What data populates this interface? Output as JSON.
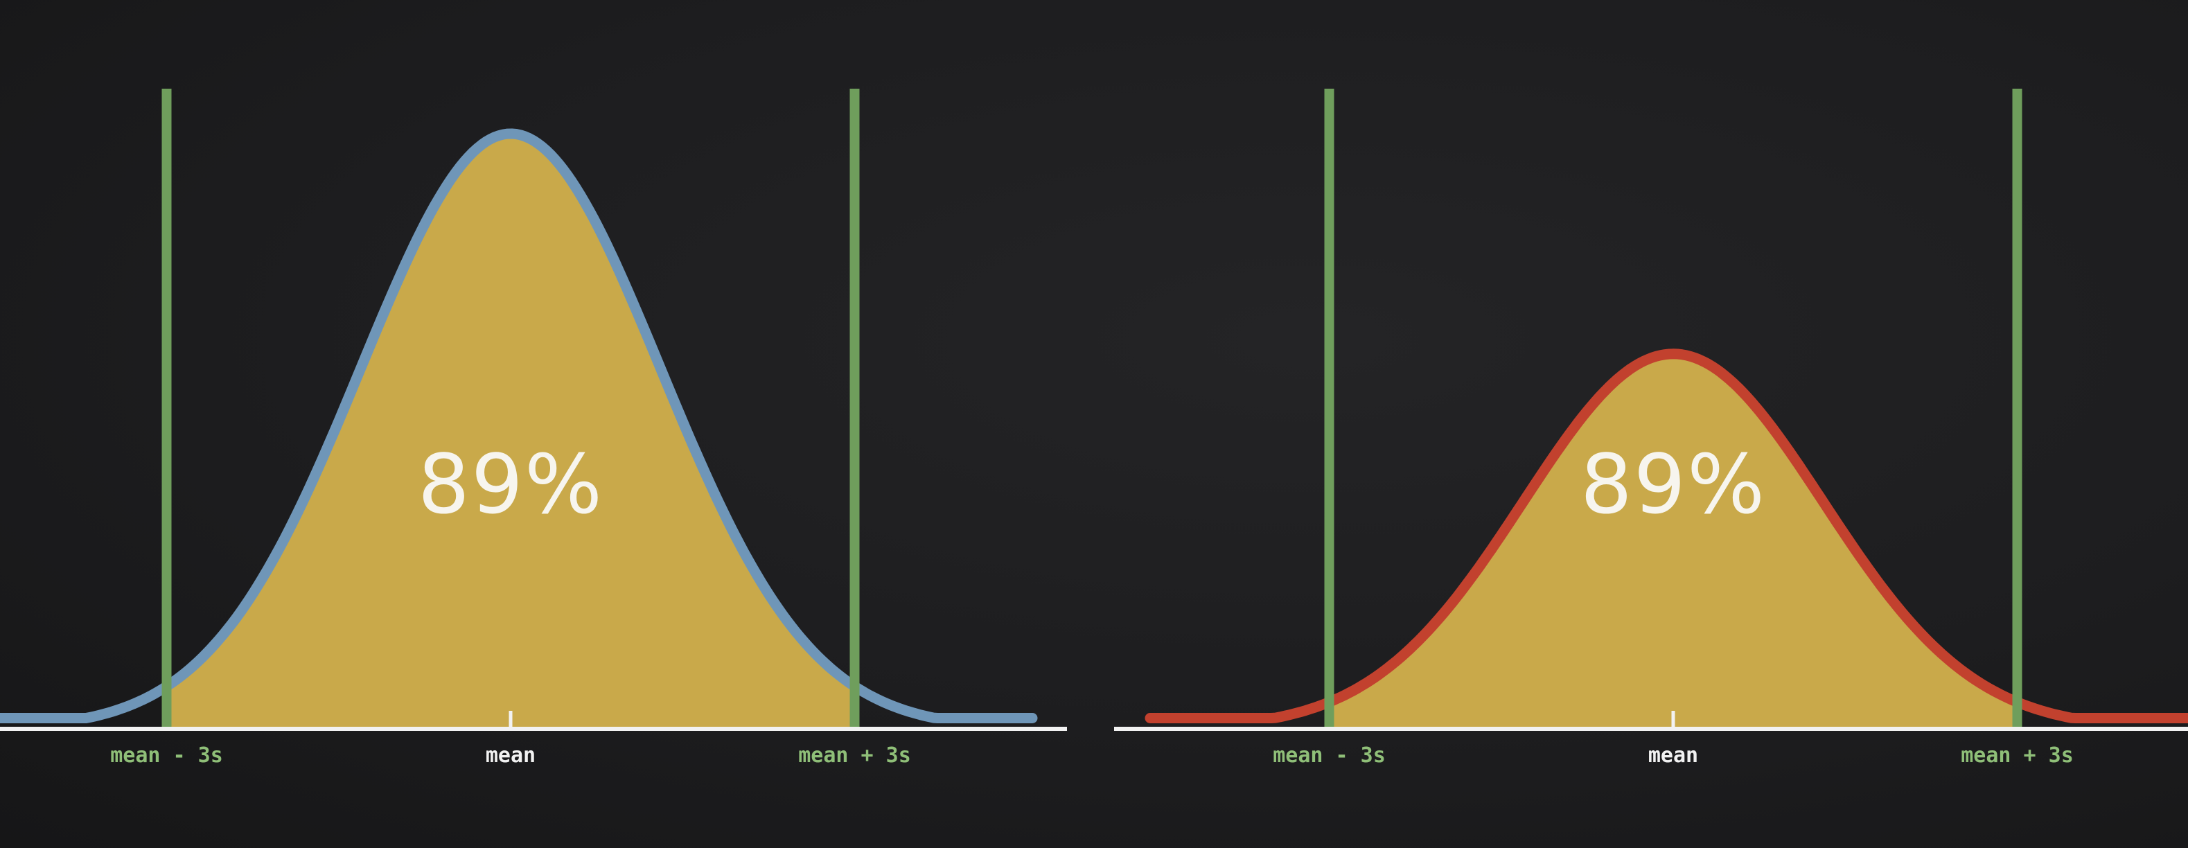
{
  "chart_data": [
    {
      "type": "area",
      "description_role": "left normal distribution",
      "x": [
        -4.0,
        -3.5,
        -3.0,
        -2.5,
        -2.0,
        -1.5,
        -1.0,
        -0.5,
        0.0,
        0.5,
        1.0,
        1.5,
        2.0,
        2.5,
        3.0,
        3.5,
        4.0
      ],
      "peak_value": 1.0,
      "xlim": [
        -4.5,
        4.5
      ],
      "ylim": [
        0,
        1.05
      ],
      "shaded_range": [
        -3,
        3
      ],
      "annotation": "89%",
      "tick_labels": [
        "mean - 3s",
        "mean",
        "mean + 3s"
      ],
      "tick_positions": [
        -3,
        0,
        3
      ],
      "curve_color": "#6f96b8",
      "fill_color": "#c9a94a",
      "line_color": "#6f9e5c"
    },
    {
      "type": "area",
      "description_role": "right normal distribution",
      "x": [
        -4.0,
        -3.5,
        -3.0,
        -2.5,
        -2.0,
        -1.5,
        -1.0,
        -0.5,
        0.0,
        0.5,
        1.0,
        1.5,
        2.0,
        2.5,
        3.0,
        3.5,
        4.0
      ],
      "peak_value": 0.63,
      "xlim": [
        -4.5,
        4.5
      ],
      "ylim": [
        0,
        1.05
      ],
      "shaded_range": [
        -3,
        3
      ],
      "annotation": "89%",
      "tick_labels": [
        "mean - 3s",
        "mean",
        "mean + 3s"
      ],
      "tick_positions": [
        -3,
        0,
        3
      ],
      "curve_color": "#c2412e",
      "fill_color": "#c9a94a",
      "line_color": "#6f9e5c"
    }
  ]
}
